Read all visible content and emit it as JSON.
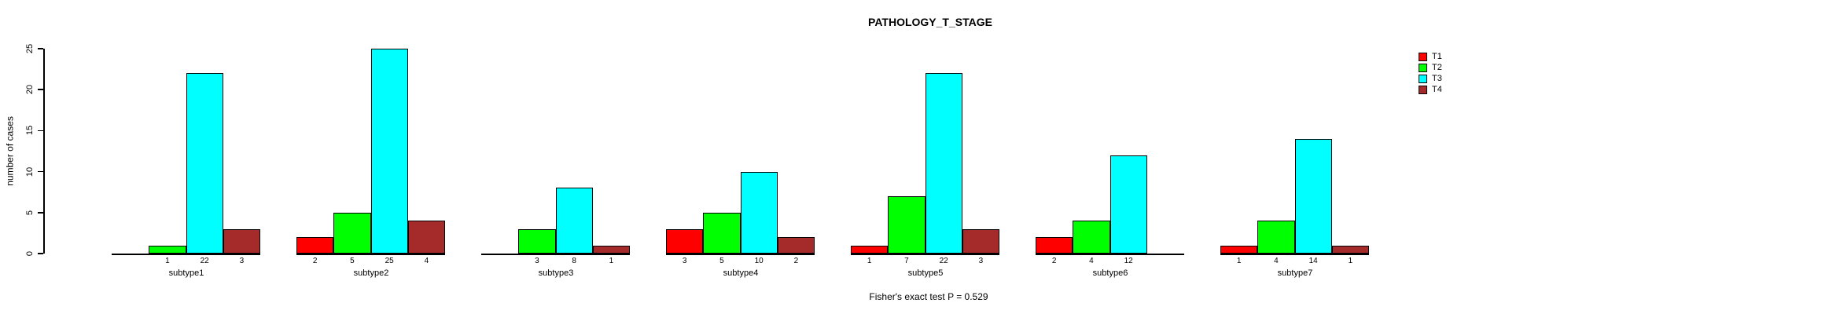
{
  "title": "PATHOLOGY_T_STAGE",
  "footer": "Fisher's exact test P = 0.529",
  "y_axis": {
    "label": "number of cases",
    "ticks": [
      0,
      5,
      10,
      15,
      20,
      25
    ]
  },
  "legend": {
    "position": "right",
    "items": [
      {
        "label": "T1",
        "color": "#FF0000"
      },
      {
        "label": "T2",
        "color": "#00FF00"
      },
      {
        "label": "T3",
        "color": "#00FFFF"
      },
      {
        "label": "T4",
        "color": "#A52A2A"
      }
    ]
  },
  "chart_data": {
    "type": "bar",
    "title": "PATHOLOGY_T_STAGE",
    "xlabel": "",
    "ylabel": "number of cases",
    "ylim": [
      0,
      25
    ],
    "grid": false,
    "legend_position": "right",
    "bar_value_labels_shown": true,
    "annotation": "Fisher's exact test P = 0.529",
    "categories": [
      "subtype1",
      "subtype2",
      "subtype3",
      "subtype4",
      "subtype5",
      "subtype6",
      "subtype7"
    ],
    "series": [
      {
        "name": "T1",
        "color": "#FF0000",
        "values": [
          0,
          2,
          0,
          3,
          1,
          2,
          1
        ]
      },
      {
        "name": "T2",
        "color": "#00FF00",
        "values": [
          1,
          5,
          3,
          5,
          7,
          4,
          4
        ]
      },
      {
        "name": "T3",
        "color": "#00FFFF",
        "values": [
          22,
          25,
          8,
          10,
          22,
          12,
          14
        ]
      },
      {
        "name": "T4",
        "color": "#A52A2A",
        "values": [
          3,
          4,
          1,
          2,
          3,
          0,
          1
        ]
      }
    ]
  }
}
